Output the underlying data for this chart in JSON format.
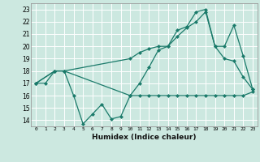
{
  "xlabel": "Humidex (Indice chaleur)",
  "bg_color": "#cce8e0",
  "grid_color": "#ffffff",
  "line_color": "#1a7a6a",
  "xlim": [
    -0.5,
    23.5
  ],
  "ylim": [
    13.5,
    23.5
  ],
  "yticks": [
    14,
    15,
    16,
    17,
    18,
    19,
    20,
    21,
    22,
    23
  ],
  "xticks": [
    0,
    1,
    2,
    3,
    4,
    5,
    6,
    7,
    8,
    9,
    10,
    11,
    12,
    13,
    14,
    15,
    16,
    17,
    18,
    19,
    20,
    21,
    22,
    23
  ],
  "line1_x": [
    0,
    1,
    2,
    3,
    4,
    5,
    6,
    7,
    8,
    9,
    10,
    11,
    12,
    13,
    14,
    15,
    16,
    17,
    18,
    19,
    20,
    21,
    22,
    23
  ],
  "line1_y": [
    17.0,
    17.0,
    18.0,
    18.0,
    16.0,
    13.7,
    14.5,
    15.3,
    14.1,
    14.3,
    16.0,
    16.0,
    16.0,
    16.0,
    16.0,
    16.0,
    16.0,
    16.0,
    16.0,
    16.0,
    16.0,
    16.0,
    16.0,
    16.3
  ],
  "line2_x": [
    0,
    2,
    3,
    10,
    11,
    12,
    13,
    14,
    15,
    16,
    17,
    18,
    19,
    20,
    21,
    22,
    23
  ],
  "line2_y": [
    17.0,
    18.0,
    18.0,
    19.0,
    19.5,
    19.8,
    20.0,
    20.0,
    20.8,
    21.5,
    22.0,
    22.8,
    20.0,
    20.0,
    21.7,
    19.2,
    16.5
  ],
  "line3_x": [
    0,
    2,
    3,
    10,
    11,
    12,
    13,
    14,
    15,
    16,
    17,
    18,
    19,
    20,
    21,
    22,
    23
  ],
  "line3_y": [
    17.0,
    18.0,
    18.0,
    16.0,
    17.0,
    18.3,
    19.7,
    20.0,
    21.3,
    21.6,
    22.8,
    23.0,
    20.0,
    19.0,
    18.8,
    17.5,
    16.5
  ]
}
